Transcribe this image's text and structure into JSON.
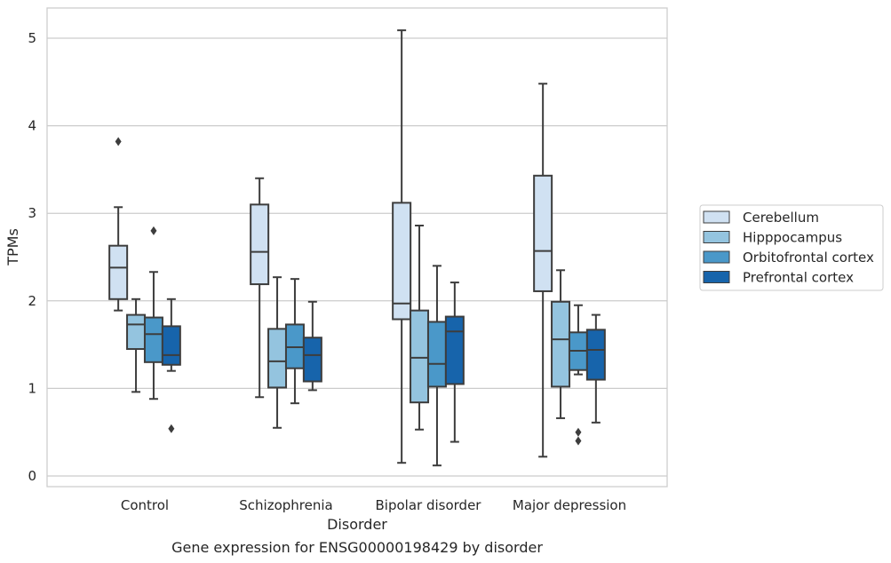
{
  "chart_data": {
    "type": "box",
    "caption": "Gene expression for ENSG00000198429 by disorder",
    "xlabel": "Disorder",
    "ylabel": "TPMs",
    "ylim": [
      -0.12,
      5.35
    ],
    "yticks": [
      0,
      1,
      2,
      3,
      4,
      5
    ],
    "grid": "horizontal",
    "legend_position": "right",
    "categories": [
      "Control",
      "Schizophrenia",
      "Bipolar disorder",
      "Major depression"
    ],
    "series": [
      {
        "name": "Cerebellum",
        "color": "#d0e1f2",
        "boxes": [
          {
            "whisker_low": 1.89,
            "q1": 2.02,
            "median": 2.38,
            "q3": 2.63,
            "whisker_high": 3.07,
            "outliers": [
              3.82
            ]
          },
          {
            "whisker_low": 0.9,
            "q1": 2.19,
            "median": 2.56,
            "q3": 3.1,
            "whisker_high": 3.4,
            "outliers": []
          },
          {
            "whisker_low": 0.15,
            "q1": 1.79,
            "median": 1.97,
            "q3": 3.12,
            "whisker_high": 5.09,
            "outliers": []
          },
          {
            "whisker_low": 0.22,
            "q1": 2.11,
            "median": 2.57,
            "q3": 3.43,
            "whisker_high": 4.48,
            "outliers": []
          }
        ]
      },
      {
        "name": "Hipppocampus",
        "color": "#94c4df",
        "boxes": [
          {
            "whisker_low": 0.96,
            "q1": 1.45,
            "median": 1.73,
            "q3": 1.84,
            "whisker_high": 2.02,
            "outliers": []
          },
          {
            "whisker_low": 0.55,
            "q1": 1.01,
            "median": 1.31,
            "q3": 1.68,
            "whisker_high": 2.27,
            "outliers": []
          },
          {
            "whisker_low": 0.53,
            "q1": 0.84,
            "median": 1.35,
            "q3": 1.89,
            "whisker_high": 2.86,
            "outliers": []
          },
          {
            "whisker_low": 0.66,
            "q1": 1.02,
            "median": 1.56,
            "q3": 1.99,
            "whisker_high": 2.35,
            "outliers": []
          }
        ]
      },
      {
        "name": "Orbitofrontal cortex",
        "color": "#4a98c9",
        "boxes": [
          {
            "whisker_low": 0.88,
            "q1": 1.3,
            "median": 1.62,
            "q3": 1.81,
            "whisker_high": 2.33,
            "outliers": [
              2.8
            ]
          },
          {
            "whisker_low": 0.83,
            "q1": 1.23,
            "median": 1.47,
            "q3": 1.73,
            "whisker_high": 2.25,
            "outliers": []
          },
          {
            "whisker_low": 0.12,
            "q1": 1.02,
            "median": 1.28,
            "q3": 1.76,
            "whisker_high": 2.4,
            "outliers": []
          },
          {
            "whisker_low": 1.16,
            "q1": 1.21,
            "median": 1.43,
            "q3": 1.64,
            "whisker_high": 1.95,
            "outliers": [
              0.5,
              0.4
            ]
          }
        ]
      },
      {
        "name": "Prefrontal cortex",
        "color": "#1764ab",
        "boxes": [
          {
            "whisker_low": 1.2,
            "q1": 1.27,
            "median": 1.38,
            "q3": 1.71,
            "whisker_high": 2.02,
            "outliers": [
              0.54
            ]
          },
          {
            "whisker_low": 0.98,
            "q1": 1.08,
            "median": 1.38,
            "q3": 1.58,
            "whisker_high": 1.99,
            "outliers": []
          },
          {
            "whisker_low": 0.39,
            "q1": 1.05,
            "median": 1.65,
            "q3": 1.82,
            "whisker_high": 2.21,
            "outliers": []
          },
          {
            "whisker_low": 0.61,
            "q1": 1.1,
            "median": 1.44,
            "q3": 1.67,
            "whisker_high": 1.84,
            "outliers": []
          }
        ]
      }
    ]
  }
}
